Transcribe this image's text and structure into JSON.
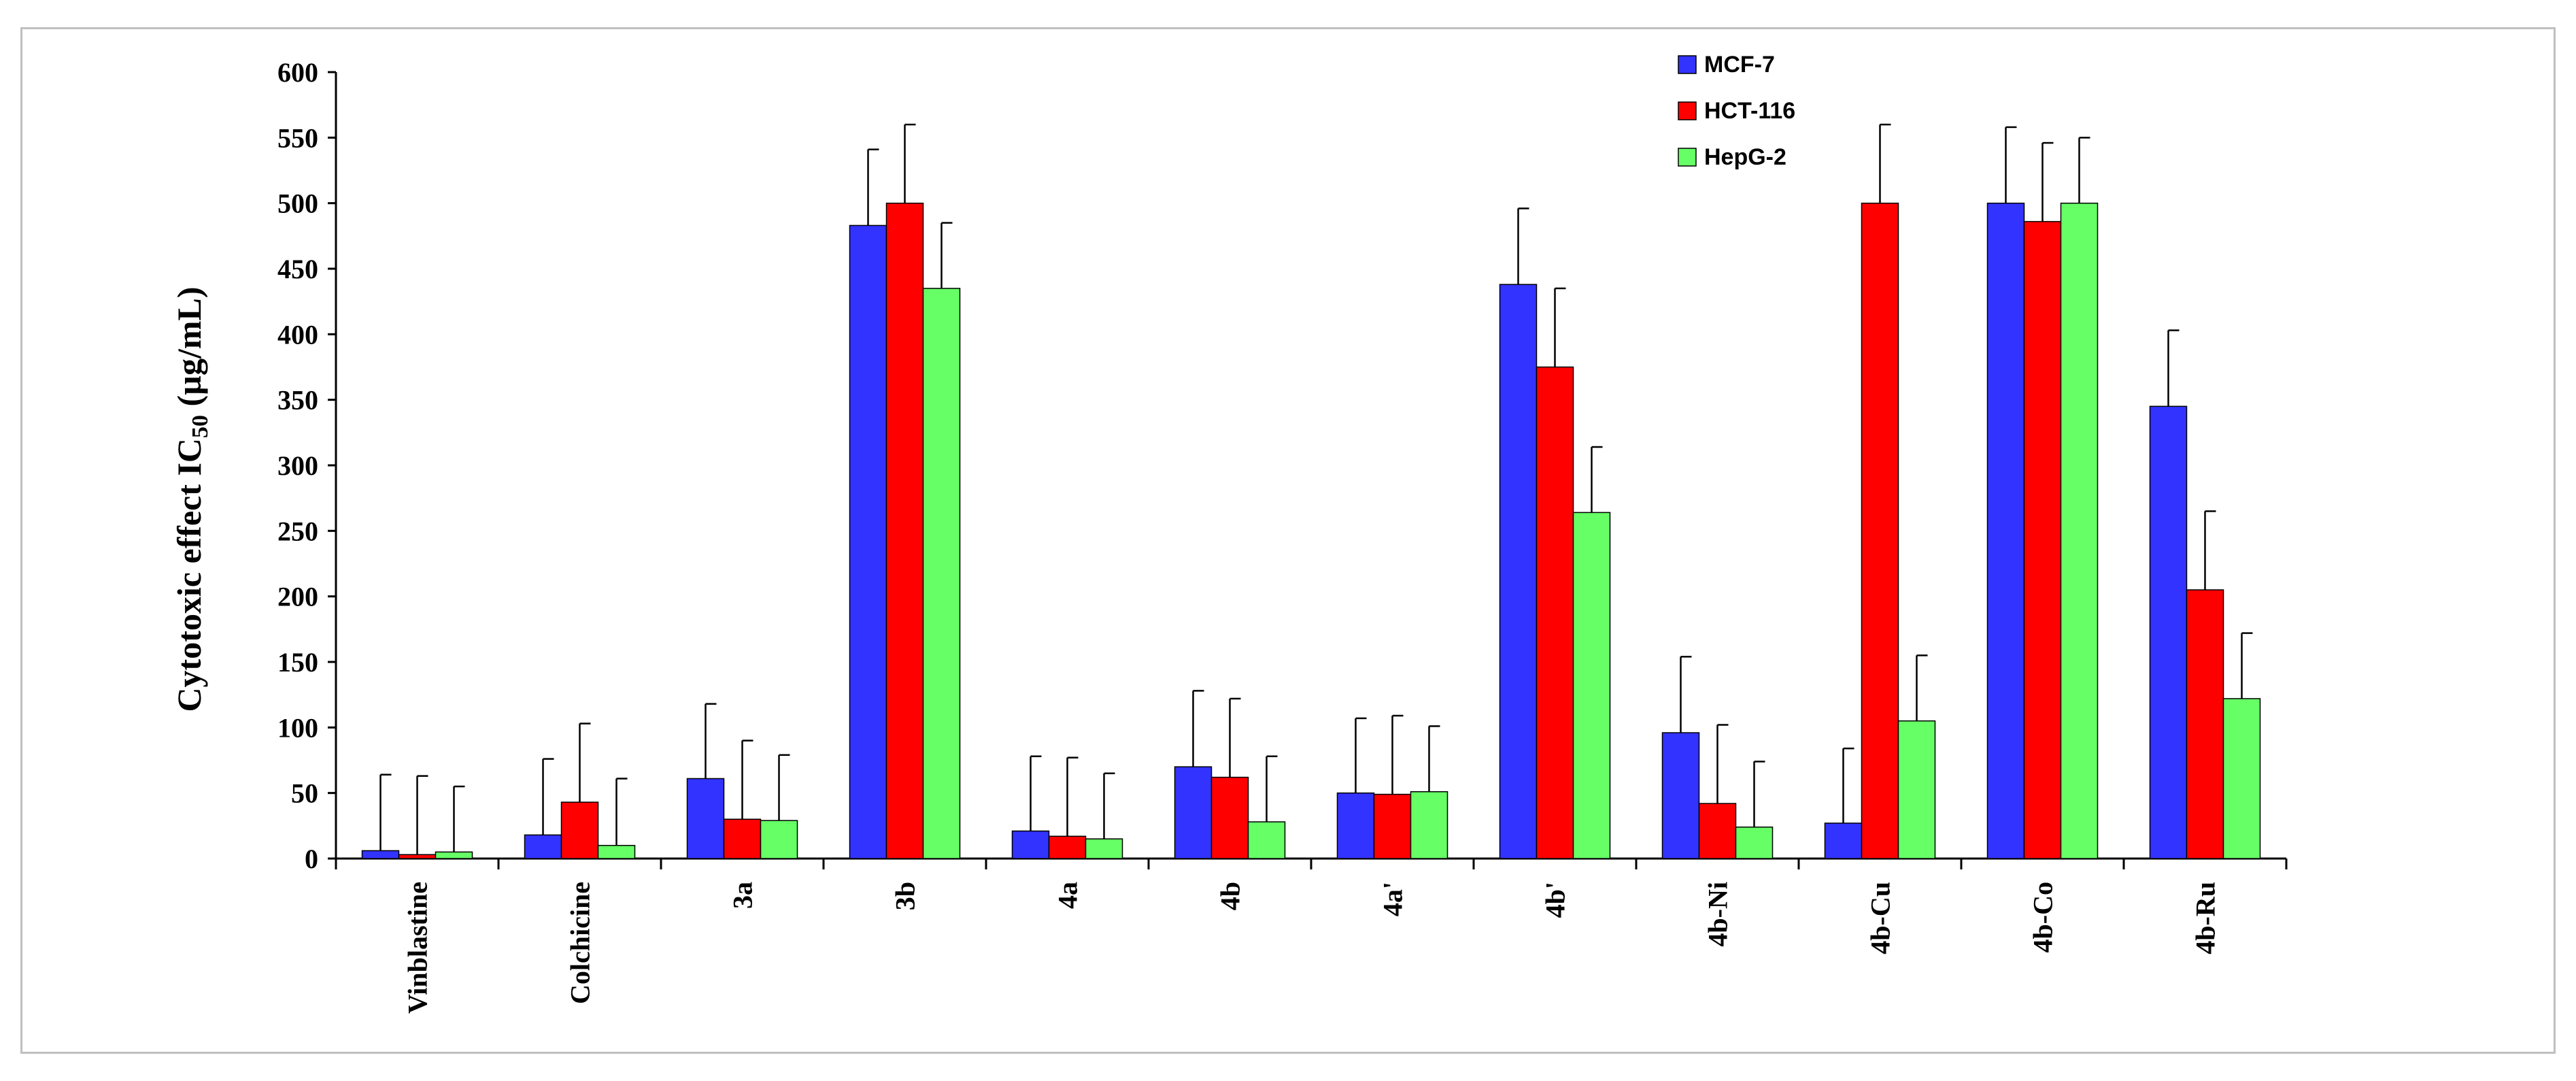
{
  "chart_data": {
    "type": "bar",
    "title": "",
    "xlabel": "",
    "ylabel": "Cytotoxic effect IC50 (µg/mL)",
    "ylabel_main": "Cytotoxic effect IC",
    "ylabel_sub": "50",
    "ylabel_unit": " (µg/mL)",
    "ylim": [
      0,
      600
    ],
    "yticks": [
      0,
      50,
      100,
      150,
      200,
      250,
      300,
      350,
      400,
      450,
      500,
      550,
      600
    ],
    "grid": false,
    "legend_position": "top-right",
    "categories": [
      "Vinblastine",
      "Colchicine",
      "3a",
      "3b",
      "4a",
      "4b",
      "4a'",
      "4b'",
      "4b-Ni",
      "4b-Cu",
      "4b-Co",
      "4b-Ru"
    ],
    "series": [
      {
        "name": "MCF-7",
        "color": "#3333ff",
        "values": [
          6,
          18,
          61,
          483,
          21,
          70,
          50,
          438,
          96,
          27,
          500,
          345
        ],
        "errors": [
          58,
          58,
          57,
          58,
          57,
          58,
          57,
          58,
          58,
          57,
          58,
          58
        ]
      },
      {
        "name": "HCT-116",
        "color": "#ff0000",
        "values": [
          3,
          43,
          30,
          500,
          17,
          62,
          49,
          375,
          42,
          500,
          486,
          205
        ],
        "errors": [
          60,
          60,
          60,
          60,
          60,
          60,
          60,
          60,
          60,
          60,
          60,
          60
        ]
      },
      {
        "name": "HepG-2",
        "color": "#66ff66",
        "values": [
          5,
          10,
          29,
          435,
          15,
          28,
          51,
          264,
          24,
          105,
          500,
          122
        ],
        "errors": [
          50,
          51,
          50,
          50,
          50,
          50,
          50,
          50,
          50,
          50,
          50,
          50
        ]
      }
    ]
  }
}
